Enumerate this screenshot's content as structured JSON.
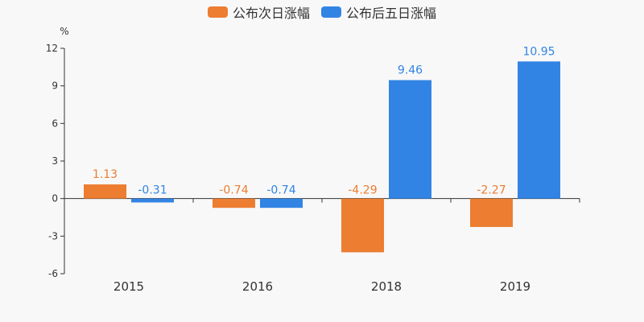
{
  "chart_data": {
    "type": "bar",
    "ylabel": "%",
    "categories": [
      "2015",
      "2016",
      "2018",
      "2019"
    ],
    "ylim": [
      -6,
      12
    ],
    "yticks": [
      -6,
      -3,
      0,
      3,
      6,
      9,
      12
    ],
    "legend_position": "top-center",
    "grid": false,
    "series": [
      {
        "name": "公布次日涨幅",
        "color": "#ed7d31",
        "values": [
          1.13,
          -0.74,
          -4.29,
          -2.27
        ],
        "labels": [
          "1.13",
          "-0.74",
          "-4.29",
          "-2.27"
        ]
      },
      {
        "name": "公布后五日涨幅",
        "color": "#3284e4",
        "values": [
          -0.31,
          -0.74,
          9.46,
          10.95
        ],
        "labels": [
          "-0.31",
          "-0.74",
          "9.46",
          "10.95"
        ]
      }
    ]
  }
}
